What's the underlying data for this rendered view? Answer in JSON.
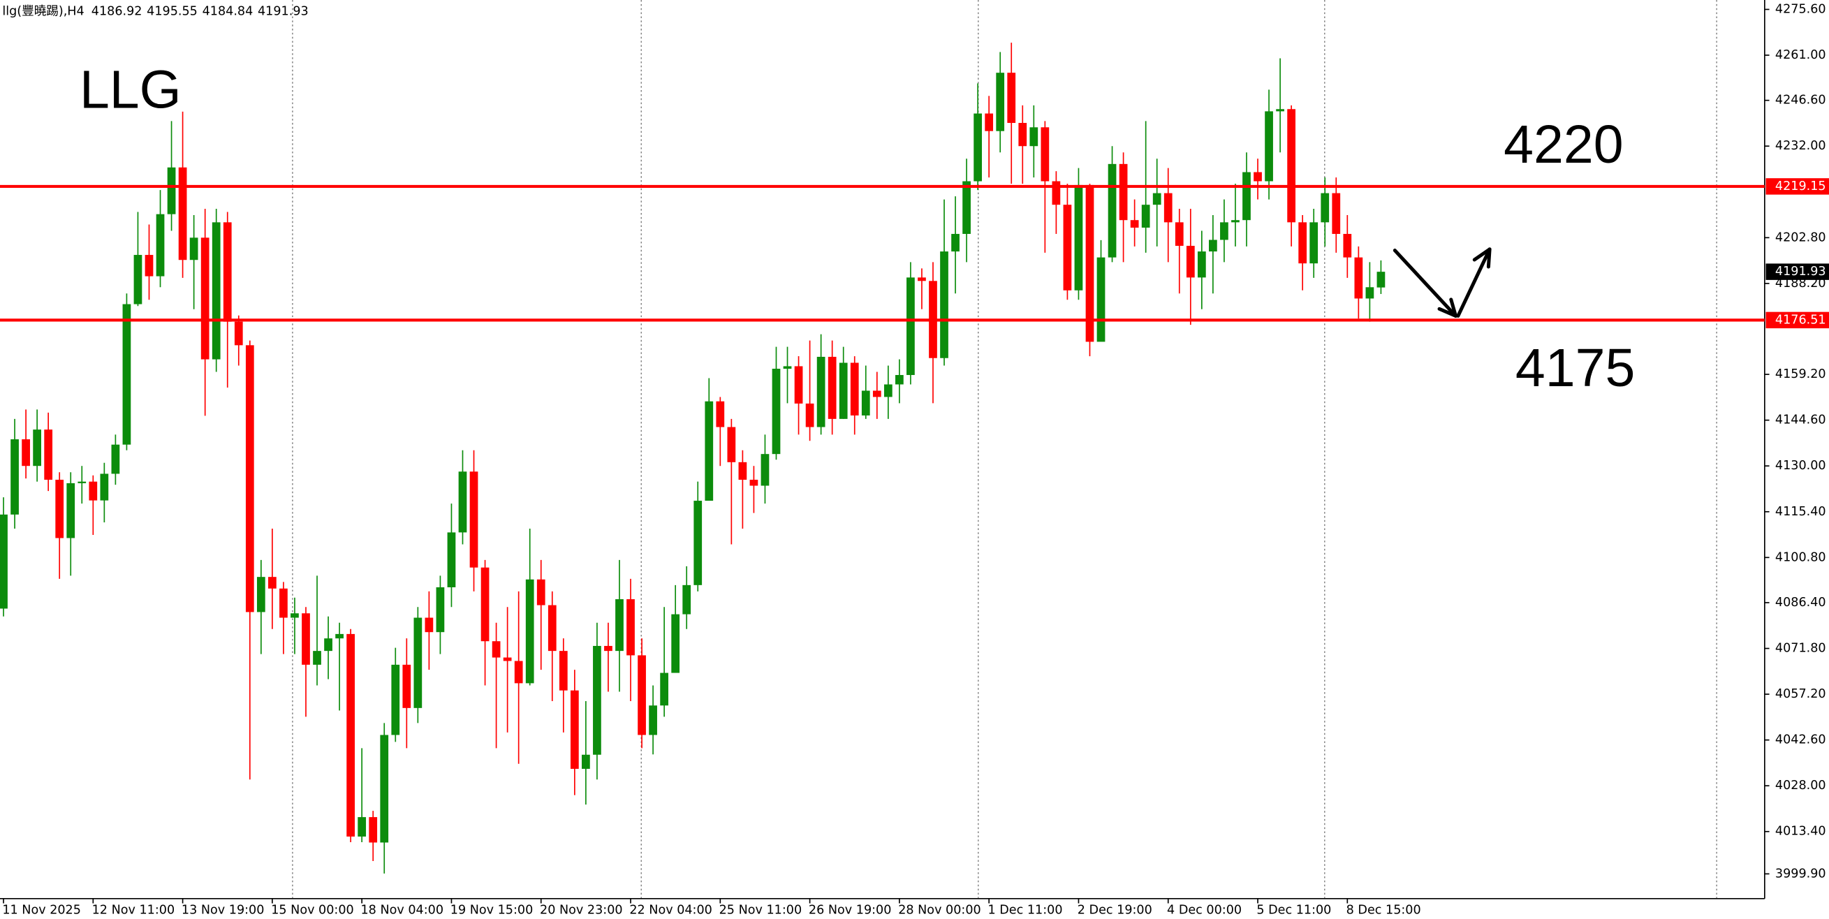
{
  "chart_data": {
    "type": "candlestick",
    "symbol": "llg(豐曉踢),H4",
    "up_color": "#0c8c0c",
    "down_color": "#ff0000",
    "ylim": [
      3992.0,
      4278.6
    ],
    "yticks": [
      {
        "value": 4275.6,
        "label": "4275.60"
      },
      {
        "value": 4261.0,
        "label": "4261.00"
      },
      {
        "value": 4246.6,
        "label": "4246.60"
      },
      {
        "value": 4232.0,
        "label": "4232.00"
      },
      {
        "value": 4202.8,
        "label": "4202.80"
      },
      {
        "value": 4188.2,
        "label": "4188.20"
      },
      {
        "value": 4159.2,
        "label": "4159.20"
      },
      {
        "value": 4144.6,
        "label": "4144.60"
      },
      {
        "value": 4130.0,
        "label": "4130.00"
      },
      {
        "value": 4115.4,
        "label": "4115.40"
      },
      {
        "value": 4100.8,
        "label": "4100.80"
      },
      {
        "value": 4086.4,
        "label": "4086.40"
      },
      {
        "value": 4071.8,
        "label": "4071.80"
      },
      {
        "value": 4057.2,
        "label": "4057.20"
      },
      {
        "value": 4042.6,
        "label": "4042.60"
      },
      {
        "value": 4028.0,
        "label": "4028.00"
      },
      {
        "value": 4013.4,
        "label": "4013.40"
      },
      {
        "value": 3999.9,
        "label": "3999.90"
      }
    ],
    "levels": [
      {
        "value": 4219.15,
        "color": "#ff0000"
      },
      {
        "value": 4176.51,
        "color": "#ff0000"
      }
    ],
    "annotations": [
      "LLG",
      "4220",
      "4175"
    ],
    "categories": [
      "11 Nov 2025",
      null,
      null,
      null,
      null,
      null,
      null,
      null,
      "12 Nov 11:00",
      null,
      null,
      null,
      null,
      null,
      null,
      null,
      "13 Nov 19:00",
      null,
      null,
      null,
      null,
      null,
      null,
      null,
      "15 Nov 00:00",
      null,
      null,
      null,
      null,
      null,
      null,
      null,
      "18 Nov 04:00",
      null,
      null,
      null,
      null,
      null,
      null,
      null,
      "19 Nov 15:00",
      null,
      null,
      null,
      null,
      null,
      null,
      null,
      "20 Nov 23:00",
      null,
      null,
      null,
      null,
      null,
      null,
      null,
      "22 Nov 04:00",
      null,
      null,
      null,
      null,
      null,
      null,
      null,
      "25 Nov 11:00",
      null,
      null,
      null,
      null,
      null,
      null,
      null,
      "26 Nov 19:00",
      null,
      null,
      null,
      null,
      null,
      null,
      null,
      "28 Nov 00:00",
      null,
      null,
      null,
      null,
      null,
      null,
      null,
      "1 Dec 11:00",
      null,
      null,
      null,
      null,
      null,
      null,
      null,
      "2 Dec 19:00",
      null,
      null,
      null,
      null,
      null,
      null,
      null,
      "4 Dec 00:00",
      null,
      null,
      null,
      null,
      null,
      null,
      null,
      "5 Dec 11:00",
      null,
      null,
      null,
      null,
      null,
      null,
      null,
      "8 Dec 15:00",
      null,
      null,
      null
    ],
    "open": [
      4084.5,
      4114.5,
      4138.5,
      4130,
      4141.6,
      4125.6,
      4107,
      4124.5,
      4125,
      4119,
      4127.5,
      4136.8,
      4181.6,
      4197.3,
      4190.5,
      4210.3,
      4225.2,
      4195.7,
      4202.8,
      4164,
      4207.7,
      4176,
      4168.5,
      4083.4,
      4094.6,
      4090.9,
      4081.6,
      4083,
      4066.6,
      4071,
      4075,
      4076.4,
      4011.8,
      4018,
      4009.9,
      4044.2,
      4066.6,
      4052.8,
      4081.6,
      4077,
      4091.3,
      4108.8,
      4128.2,
      4097.6,
      4074.1,
      4068.9,
      4067.8,
      4060.7,
      4093.8,
      4085.6,
      4071,
      4058.4,
      4033.4,
      4037.9,
      4072.6,
      4071,
      4087.5,
      4069.6,
      4044.2,
      4053.6,
      4064,
      4082.7,
      4092,
      4118.9,
      4150.6,
      4142.4,
      4131.2,
      4125.6,
      4123.7,
      4133.8,
      4161,
      4161.8,
      4149.9,
      4142.4,
      4164.8,
      4145,
      4162.9,
      4146.1,
      4154,
      4152,
      4156,
      4159,
      4190.1,
      4189,
      4164.4,
      4198.4,
      4204,
      4220.8,
      4242.4,
      4236.8,
      4255.4,
      4239.4,
      4232,
      4238,
      4220.8,
      4213.3,
      4186,
      4219.6,
      4169.6,
      4196.5,
      4226.3,
      4208.4,
      4206,
      4213.3,
      4217,
      4207.7,
      4200.2,
      4190.1,
      4198.4,
      4202.1,
      4207.7,
      4208.4,
      4223.7,
      4220.8,
      4243.1,
      4243.8,
      4207.7,
      4194.6,
      4207.7,
      4217,
      4204,
      4196.5,
      4183.4,
      4186.92
    ],
    "high": [
      4120,
      4145,
      4148,
      4148,
      4147,
      4128,
      4128,
      4130,
      4127,
      4131,
      4140,
      4185,
      4211,
      4207,
      4218,
      4240,
      4243,
      4210,
      4212,
      4212,
      4211,
      4178,
      4170,
      4100,
      4110,
      4093,
      4088,
      4085,
      4095,
      4082,
      4080,
      4078,
      4040,
      4020,
      4048,
      4072,
      4075,
      4085,
      4090,
      4095,
      4118,
      4135,
      4135,
      4100,
      4080,
      4085,
      4090,
      4110,
      4100,
      4090,
      4075,
      4065,
      4055,
      4080,
      4080,
      4100,
      4094,
      4075,
      4060,
      4085,
      4092,
      4098,
      4125,
      4158,
      4152,
      4145,
      4135,
      4130,
      4140,
      4168,
      4168,
      4165,
      4170,
      4172,
      4170,
      4168,
      4165,
      4162,
      4160,
      4162,
      4164,
      4195,
      4193,
      4195,
      4215,
      4216,
      4228,
      4252,
      4248,
      4262,
      4265,
      4245,
      4245,
      4240,
      4224,
      4220,
      4225,
      4220,
      4202,
      4232,
      4230,
      4215,
      4240,
      4228,
      4225,
      4212,
      4212,
      4205,
      4210,
      4215,
      4220,
      4230,
      4228,
      4250,
      4260,
      4245,
      4210,
      4212,
      4222,
      4222,
      4210,
      4200,
      4195,
      4195.55
    ],
    "low": [
      4082,
      4110,
      4126,
      4125,
      4122,
      4094,
      4095,
      4118,
      4108,
      4112,
      4124,
      4135,
      4181,
      4183,
      4187,
      4205,
      4190,
      4180,
      4146,
      4160,
      4155,
      4162,
      4030,
      4070,
      4078,
      4070,
      4070,
      4050,
      4060,
      4062,
      4052,
      4010,
      4010,
      4004,
      4000,
      4042,
      4040,
      4048,
      4065,
      4070,
      4085,
      4105,
      4090,
      4060,
      4040,
      4045,
      4035,
      4060,
      4065,
      4055,
      4045,
      4025,
      4022,
      4030,
      4058,
      4058,
      4055,
      4040,
      4038,
      4050,
      4065,
      4078,
      4090,
      4120,
      4130,
      4105,
      4110,
      4115,
      4118,
      4132,
      4150,
      4140,
      4138,
      4140,
      4140,
      4145,
      4140,
      4145,
      4145,
      4145,
      4150,
      4156,
      4180,
      4150,
      4162,
      4185,
      4195,
      4218,
      4222,
      4230,
      4220,
      4220,
      4222,
      4198,
      4204,
      4183,
      4183,
      4165,
      4170,
      4195,
      4195,
      4200,
      4198,
      4200,
      4195,
      4185,
      4175,
      4180,
      4185,
      4195,
      4200,
      4200,
      4215,
      4215,
      4230,
      4200,
      4186,
      4190,
      4200,
      4198,
      4190,
      4177,
      4176,
      4184.84
    ],
    "close": [
      4114.5,
      4138.5,
      4130,
      4141.6,
      4125.6,
      4107,
      4124.5,
      4125,
      4119,
      4127.5,
      4136.8,
      4181.6,
      4197.3,
      4190.5,
      4210.3,
      4225.2,
      4195.7,
      4202.8,
      4164,
      4207.7,
      4176,
      4168.5,
      4083.4,
      4094.6,
      4090.9,
      4081.6,
      4083,
      4066.6,
      4071,
      4075,
      4076.4,
      4011.8,
      4018,
      4009.9,
      4044.2,
      4066.6,
      4052.8,
      4081.6,
      4077,
      4091.3,
      4108.8,
      4128.2,
      4097.6,
      4074.1,
      4068.9,
      4067.8,
      4060.7,
      4093.8,
      4085.6,
      4071,
      4058.4,
      4033.4,
      4037.9,
      4072.6,
      4071,
      4087.5,
      4069.6,
      4044.2,
      4053.6,
      4064,
      4082.7,
      4092,
      4118.9,
      4150.6,
      4142.4,
      4131.2,
      4125.6,
      4123.7,
      4133.8,
      4161,
      4161.8,
      4149.9,
      4142.4,
      4164.8,
      4145,
      4162.9,
      4146.1,
      4154,
      4152,
      4156,
      4159,
      4190.1,
      4189,
      4164.4,
      4198.4,
      4204,
      4220.8,
      4242.4,
      4236.8,
      4255.4,
      4239.4,
      4232,
      4238,
      4220.8,
      4213.3,
      4186,
      4219.6,
      4169.6,
      4196.5,
      4226.3,
      4208.4,
      4206,
      4213.3,
      4217,
      4207.7,
      4200.2,
      4190.1,
      4198.4,
      4202.1,
      4207.7,
      4208.4,
      4223.7,
      4220.8,
      4243.1,
      4243.8,
      4207.7,
      4194.6,
      4207.7,
      4217,
      4204,
      4196.5,
      4183.4,
      4187,
      4191.93
    ]
  }
}
